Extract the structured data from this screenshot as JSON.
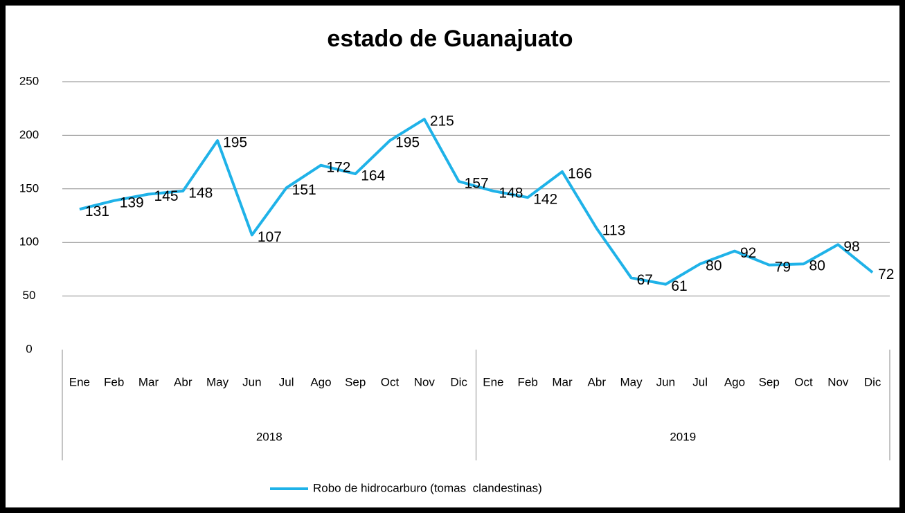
{
  "chart_data": {
    "type": "line",
    "title": "estado de Guanajuato",
    "categories": [
      "Ene",
      "Feb",
      "Mar",
      "Abr",
      "May",
      "Jun",
      "Jul",
      "Ago",
      "Sep",
      "Oct",
      "Nov",
      "Dic",
      "Ene",
      "Feb",
      "Mar",
      "Abr",
      "May",
      "Jun",
      "Jul",
      "Ago",
      "Sep",
      "Oct",
      "Nov",
      "Dic"
    ],
    "groups": [
      {
        "label": "2018",
        "count": 12
      },
      {
        "label": "2019",
        "count": 12
      }
    ],
    "series": [
      {
        "name": "Robo de hidrocarburo (tomas  clandestinas)",
        "color": "#1fb2e8",
        "values": [
          131,
          139,
          145,
          148,
          195,
          107,
          151,
          172,
          164,
          195,
          215,
          157,
          148,
          142,
          166,
          113,
          67,
          61,
          80,
          92,
          79,
          80,
          98,
          72
        ]
      }
    ],
    "ylim": [
      0,
      250
    ],
    "yticks": [
      0,
      50,
      100,
      150,
      200,
      250
    ],
    "grid": true
  }
}
